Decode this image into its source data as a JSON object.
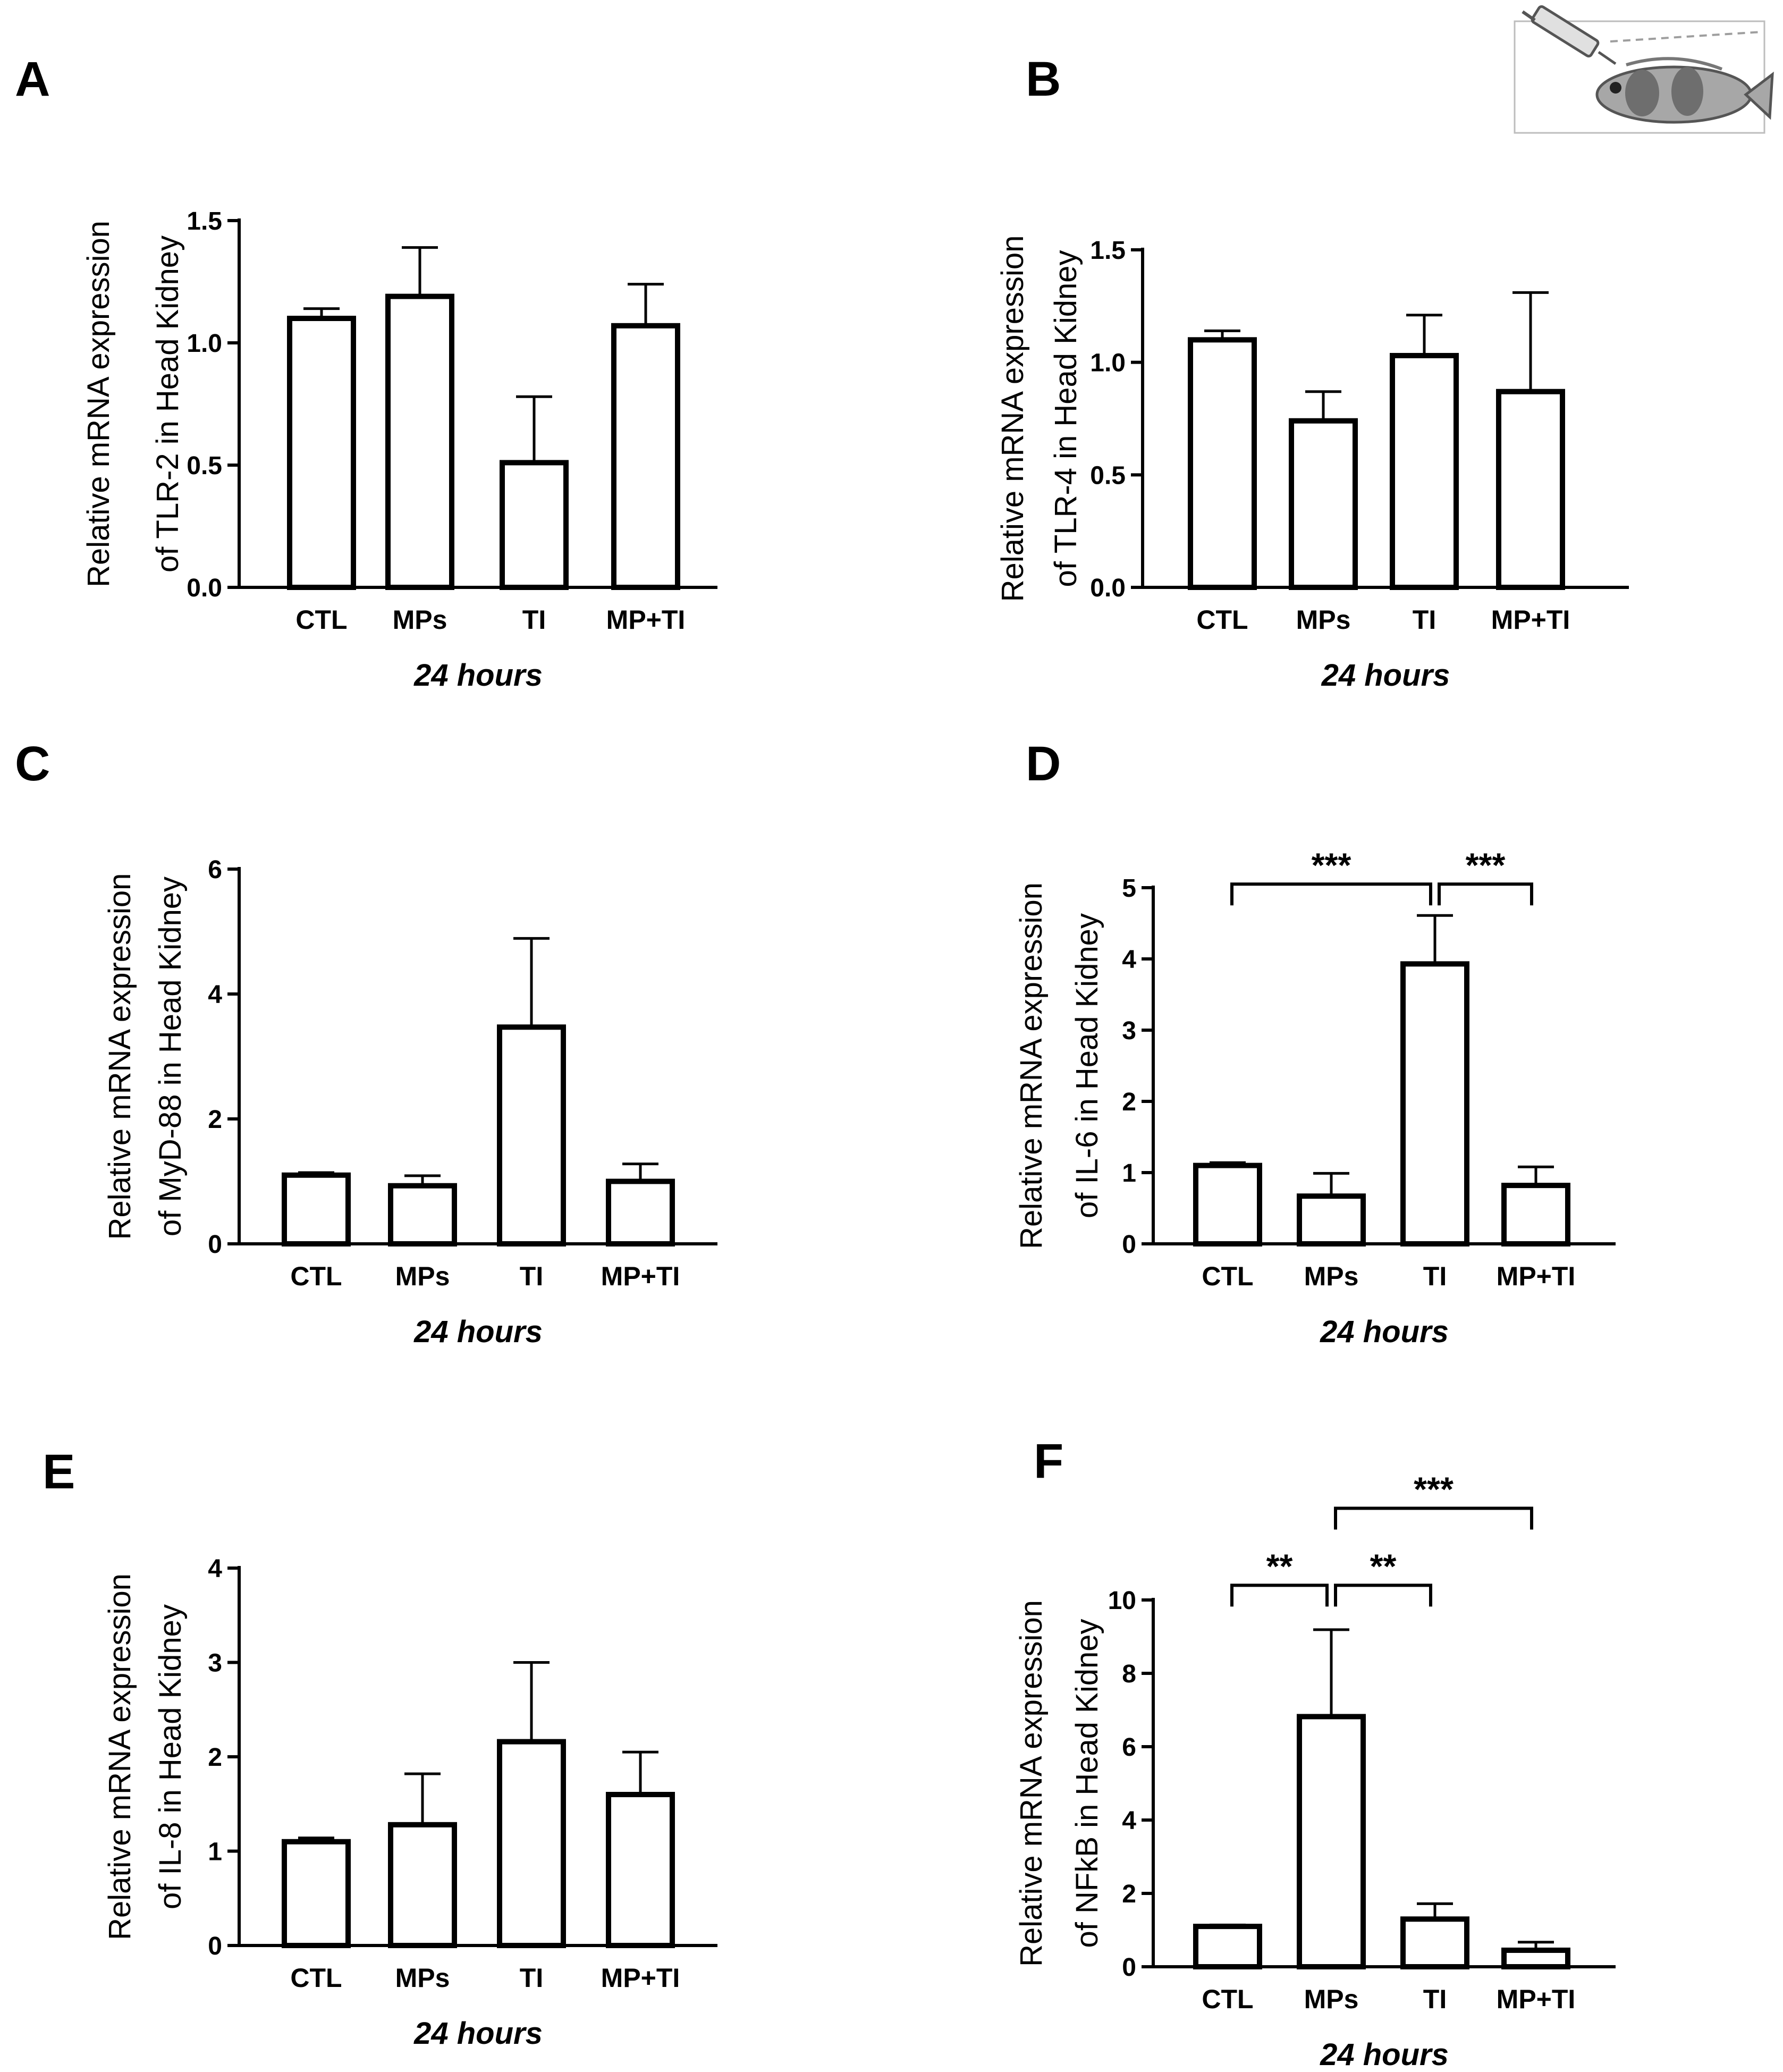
{
  "chart_data": [
    {
      "type": "bar",
      "panel": "A",
      "categories": [
        "CTL",
        "MPs",
        "TI",
        "MP+TI"
      ],
      "values": [
        1.1,
        1.19,
        0.51,
        1.07
      ],
      "errors": [
        0.04,
        0.2,
        0.27,
        0.17
      ],
      "ylabel": [
        "Relative mRNA expression",
        "of TLR-2 in Head Kidney"
      ],
      "xlabel": "24 hours",
      "ylim": [
        0,
        1.5
      ],
      "yticks": [
        "0.0",
        "0.5",
        "1.0",
        "1.5"
      ],
      "significance": []
    },
    {
      "type": "bar",
      "panel": "B",
      "categories": [
        "CTL",
        "MPs",
        "TI",
        "MP+TI"
      ],
      "values": [
        1.1,
        0.74,
        1.03,
        0.87
      ],
      "errors": [
        0.04,
        0.13,
        0.18,
        0.44
      ],
      "ylabel": [
        "Relative mRNA expression",
        "of TLR-4 in Head Kidney"
      ],
      "xlabel": "24 hours",
      "ylim": [
        0,
        1.5
      ],
      "yticks": [
        "0.0",
        "0.5",
        "1.0",
        "1.5"
      ],
      "significance": []
    },
    {
      "type": "bar",
      "panel": "C",
      "categories": [
        "CTL",
        "MPs",
        "TI",
        "MP+TI"
      ],
      "values": [
        1.1,
        0.93,
        3.47,
        1.0
      ],
      "errors": [
        0.04,
        0.16,
        1.42,
        0.28
      ],
      "ylabel": [
        "Relative mRNA expression",
        "of MyD-88 in Head Kidney"
      ],
      "xlabel": "24 hours",
      "ylim": [
        0,
        6
      ],
      "yticks": [
        "0",
        "2",
        "4",
        "6"
      ],
      "significance": []
    },
    {
      "type": "bar",
      "panel": "D",
      "categories": [
        "CTL",
        "MPs",
        "TI",
        "MP+TI"
      ],
      "values": [
        1.1,
        0.67,
        3.93,
        0.82
      ],
      "errors": [
        0.04,
        0.32,
        0.68,
        0.26
      ],
      "ylabel": [
        "Relative mRNA expression",
        "of IL-6 in Head Kidney"
      ],
      "xlabel": "24 hours",
      "ylim": [
        0,
        5
      ],
      "yticks": [
        "0",
        "1",
        "2",
        "3",
        "4",
        "5"
      ],
      "significance": [
        {
          "from": 0,
          "to": 2,
          "label": "***",
          "level": 5.05
        },
        {
          "from": 2,
          "to": 3,
          "label": "***",
          "level": 5.05
        }
      ]
    },
    {
      "type": "bar",
      "panel": "E",
      "categories": [
        "CTL",
        "MPs",
        "TI",
        "MP+TI"
      ],
      "values": [
        1.1,
        1.28,
        2.16,
        1.6
      ],
      "errors": [
        0.04,
        0.54,
        0.84,
        0.45
      ],
      "ylabel": [
        "Relative mRNA expression",
        "of IL-8 in Head Kidney"
      ],
      "xlabel": "24 hours",
      "ylim": [
        0,
        4
      ],
      "yticks": [
        "0",
        "1",
        "2",
        "3",
        "4"
      ],
      "significance": []
    },
    {
      "type": "bar",
      "panel": "F",
      "categories": [
        "CTL",
        "MPs",
        "TI",
        "MP+TI"
      ],
      "values": [
        1.1,
        6.82,
        1.3,
        0.45
      ],
      "errors": [
        0.04,
        2.37,
        0.42,
        0.22
      ],
      "ylabel": [
        "Relative mRNA expression",
        "of NFkB in Head Kidney"
      ],
      "xlabel": "24 hours",
      "ylim": [
        0,
        10
      ],
      "yticks": [
        "0",
        "2",
        "4",
        "6",
        "8",
        "10"
      ],
      "significance": [
        {
          "from": 0,
          "to": 1,
          "label": "**",
          "level": 10.4
        },
        {
          "from": 1,
          "to": 2,
          "label": "**",
          "level": 10.4
        },
        {
          "from": 1,
          "to": 3,
          "label": "***",
          "level": 12.5
        }
      ]
    }
  ]
}
